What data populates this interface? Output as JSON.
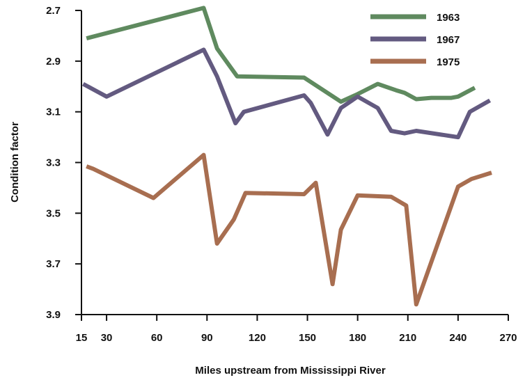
{
  "chart_data": {
    "type": "line",
    "title": "",
    "xlabel": "Miles upstream from Mississippi River",
    "ylabel": "Condition factor",
    "xlim": [
      15,
      270
    ],
    "ylim": [
      2.7,
      3.9
    ],
    "y_inverted": true,
    "x_ticks": [
      15,
      30,
      60,
      90,
      120,
      150,
      180,
      210,
      240,
      270
    ],
    "y_ticks": [
      2.7,
      2.9,
      3.1,
      3.3,
      3.5,
      3.7,
      3.9
    ],
    "y_tick_labels": [
      "2.7",
      "2.9",
      "3.1",
      "3.3",
      "3.5",
      "3.7",
      "3.9"
    ],
    "grid": false,
    "legend_position": "top-right",
    "series": [
      {
        "name": "1963",
        "color": "#5f8a5f",
        "points": [
          [
            18,
            2.81
          ],
          [
            88,
            2.69
          ],
          [
            96,
            2.85
          ],
          [
            108,
            2.96
          ],
          [
            148,
            2.965
          ],
          [
            170,
            3.06
          ],
          [
            180,
            3.03
          ],
          [
            192,
            2.99
          ],
          [
            203,
            3.015
          ],
          [
            208,
            3.025
          ],
          [
            215,
            3.05
          ],
          [
            224,
            3.045
          ],
          [
            236,
            3.045
          ],
          [
            240,
            3.04
          ],
          [
            250,
            3.005
          ]
        ]
      },
      {
        "name": "1967",
        "color": "#635a80",
        "points": [
          [
            16,
            2.99
          ],
          [
            30,
            3.04
          ],
          [
            88,
            2.855
          ],
          [
            96,
            2.96
          ],
          [
            107,
            3.145
          ],
          [
            112,
            3.1
          ],
          [
            148,
            3.035
          ],
          [
            152,
            3.065
          ],
          [
            162,
            3.19
          ],
          [
            170,
            3.085
          ],
          [
            180,
            3.04
          ],
          [
            192,
            3.085
          ],
          [
            200,
            3.175
          ],
          [
            208,
            3.185
          ],
          [
            215,
            3.175
          ],
          [
            240,
            3.2
          ],
          [
            247,
            3.1
          ],
          [
            259,
            3.055
          ]
        ]
      },
      {
        "name": "1975",
        "color": "#a86e50",
        "points": [
          [
            18,
            3.315
          ],
          [
            22,
            3.325
          ],
          [
            58,
            3.44
          ],
          [
            88,
            3.27
          ],
          [
            96,
            3.62
          ],
          [
            106,
            3.525
          ],
          [
            113,
            3.42
          ],
          [
            148,
            3.425
          ],
          [
            155,
            3.38
          ],
          [
            165,
            3.78
          ],
          [
            170,
            3.565
          ],
          [
            180,
            3.43
          ],
          [
            200,
            3.435
          ],
          [
            209,
            3.47
          ],
          [
            215,
            3.86
          ],
          [
            240,
            3.395
          ],
          [
            248,
            3.365
          ],
          [
            260,
            3.34
          ]
        ]
      }
    ]
  }
}
